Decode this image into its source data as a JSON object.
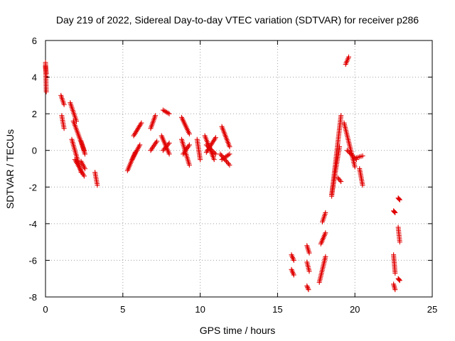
{
  "chart_data": {
    "type": "scatter",
    "title": "Day 219 of 2022, Sidereal Day-to-day VTEC variation (SDTVAR) for receiver p286",
    "xlabel": "GPS time / hours",
    "ylabel": "SDTVAR / TECUs",
    "xlim": [
      0,
      25
    ],
    "ylim": [
      -8,
      6
    ],
    "xticks": [
      "0",
      "5",
      "10",
      "15",
      "20",
      "25"
    ],
    "yticks": [
      "-8",
      "-6",
      "-4",
      "-2",
      "0",
      "2",
      "4",
      "6"
    ],
    "grid": true,
    "marker": "plus",
    "color": "#e00000",
    "segments": [
      {
        "x0": 0.0,
        "x1": 0.05,
        "y0": 4.8,
        "y1": 3.2
      },
      {
        "x0": 0.0,
        "x1": 0.05,
        "y0": 4.6,
        "y1": 4.2
      },
      {
        "x0": 1.0,
        "x1": 1.2,
        "y0": 3.0,
        "y1": 2.5
      },
      {
        "x0": 1.05,
        "x1": 1.2,
        "y0": 1.9,
        "y1": 1.2
      },
      {
        "x0": 1.6,
        "x1": 2.0,
        "y0": 2.6,
        "y1": 1.6
      },
      {
        "x0": 1.8,
        "x1": 2.5,
        "y0": 1.6,
        "y1": 0.0
      },
      {
        "x0": 2.3,
        "x1": 2.55,
        "y0": 0.5,
        "y1": -0.2
      },
      {
        "x0": 1.7,
        "x1": 2.3,
        "y0": 0.6,
        "y1": -1.2
      },
      {
        "x0": 1.9,
        "x1": 2.5,
        "y0": -0.5,
        "y1": -1.4
      },
      {
        "x0": 2.3,
        "x1": 2.55,
        "y0": -0.6,
        "y1": -1.0
      },
      {
        "x0": 3.2,
        "x1": 3.35,
        "y0": -1.2,
        "y1": -1.9
      },
      {
        "x0": 5.3,
        "x1": 5.8,
        "y0": -1.1,
        "y1": -0.1
      },
      {
        "x0": 5.6,
        "x1": 6.1,
        "y0": -0.5,
        "y1": 0.3
      },
      {
        "x0": 5.7,
        "x1": 6.2,
        "y0": 0.8,
        "y1": 1.5
      },
      {
        "x0": 6.8,
        "x1": 7.1,
        "y0": 1.2,
        "y1": 1.9
      },
      {
        "x0": 6.8,
        "x1": 7.2,
        "y0": 0.0,
        "y1": 0.5
      },
      {
        "x0": 7.6,
        "x1": 8.0,
        "y0": 2.2,
        "y1": 2.0
      },
      {
        "x0": 7.5,
        "x1": 8.0,
        "y0": 0.8,
        "y1": -0.2
      },
      {
        "x0": 7.6,
        "x1": 8.0,
        "y0": 0.0,
        "y1": 0.4
      },
      {
        "x0": 8.8,
        "x1": 9.3,
        "y0": 1.8,
        "y1": 0.9
      },
      {
        "x0": 8.8,
        "x1": 9.3,
        "y0": 0.6,
        "y1": -0.8
      },
      {
        "x0": 8.9,
        "x1": 9.3,
        "y0": -0.2,
        "y1": 0.3
      },
      {
        "x0": 9.8,
        "x1": 10.0,
        "y0": 0.6,
        "y1": -0.5
      },
      {
        "x0": 10.3,
        "x1": 10.9,
        "y0": 0.8,
        "y1": -0.5
      },
      {
        "x0": 10.4,
        "x1": 11.0,
        "y0": -0.1,
        "y1": 0.7
      },
      {
        "x0": 10.4,
        "x1": 11.0,
        "y0": 0.3,
        "y1": -0.2
      },
      {
        "x0": 11.4,
        "x1": 11.9,
        "y0": 1.3,
        "y1": 0.2
      },
      {
        "x0": 11.3,
        "x1": 11.9,
        "y0": -0.2,
        "y1": -0.8
      },
      {
        "x0": 11.4,
        "x1": 11.9,
        "y0": -0.5,
        "y1": -0.2
      },
      {
        "x0": 15.9,
        "x1": 16.05,
        "y0": -5.7,
        "y1": -6.0
      },
      {
        "x0": 15.9,
        "x1": 16.05,
        "y0": -6.5,
        "y1": -6.8
      },
      {
        "x0": 16.9,
        "x1": 17.0,
        "y0": -7.4,
        "y1": -7.6
      },
      {
        "x0": 16.9,
        "x1": 17.05,
        "y0": -6.1,
        "y1": -6.6
      },
      {
        "x0": 16.9,
        "x1": 17.05,
        "y0": -5.2,
        "y1": -5.6
      },
      {
        "x0": 17.7,
        "x1": 18.1,
        "y0": -7.2,
        "y1": -5.8
      },
      {
        "x0": 17.8,
        "x1": 18.1,
        "y0": -5.1,
        "y1": -4.5
      },
      {
        "x0": 17.9,
        "x1": 18.1,
        "y0": -3.9,
        "y1": -3.4
      },
      {
        "x0": 18.5,
        "x1": 19.1,
        "y0": -2.5,
        "y1": 1.9
      },
      {
        "x0": 18.5,
        "x1": 19.0,
        "y0": -2.4,
        "y1": 0.2
      },
      {
        "x0": 18.9,
        "x1": 19.1,
        "y0": -1.5,
        "y1": -1.7
      },
      {
        "x0": 19.4,
        "x1": 19.6,
        "y0": 4.7,
        "y1": 5.1
      },
      {
        "x0": 19.3,
        "x1": 20.0,
        "y0": 1.5,
        "y1": -0.9
      },
      {
        "x0": 19.5,
        "x1": 20.1,
        "y0": 0.0,
        "y1": -0.5
      },
      {
        "x0": 20.1,
        "x1": 20.5,
        "y0": -0.4,
        "y1": -0.3
      },
      {
        "x0": 20.3,
        "x1": 20.5,
        "y0": -1.0,
        "y1": -1.9
      },
      {
        "x0": 22.5,
        "x1": 22.6,
        "y0": -3.3,
        "y1": -3.4
      },
      {
        "x0": 22.5,
        "x1": 22.6,
        "y0": -5.7,
        "y1": -6.7
      },
      {
        "x0": 22.5,
        "x1": 22.6,
        "y0": -7.3,
        "y1": -7.6
      },
      {
        "x0": 22.8,
        "x1": 22.9,
        "y0": -2.6,
        "y1": -2.7
      },
      {
        "x0": 22.8,
        "x1": 22.9,
        "y0": -4.2,
        "y1": -5.0
      },
      {
        "x0": 22.8,
        "x1": 22.9,
        "y0": -7.0,
        "y1": -7.1
      }
    ]
  }
}
